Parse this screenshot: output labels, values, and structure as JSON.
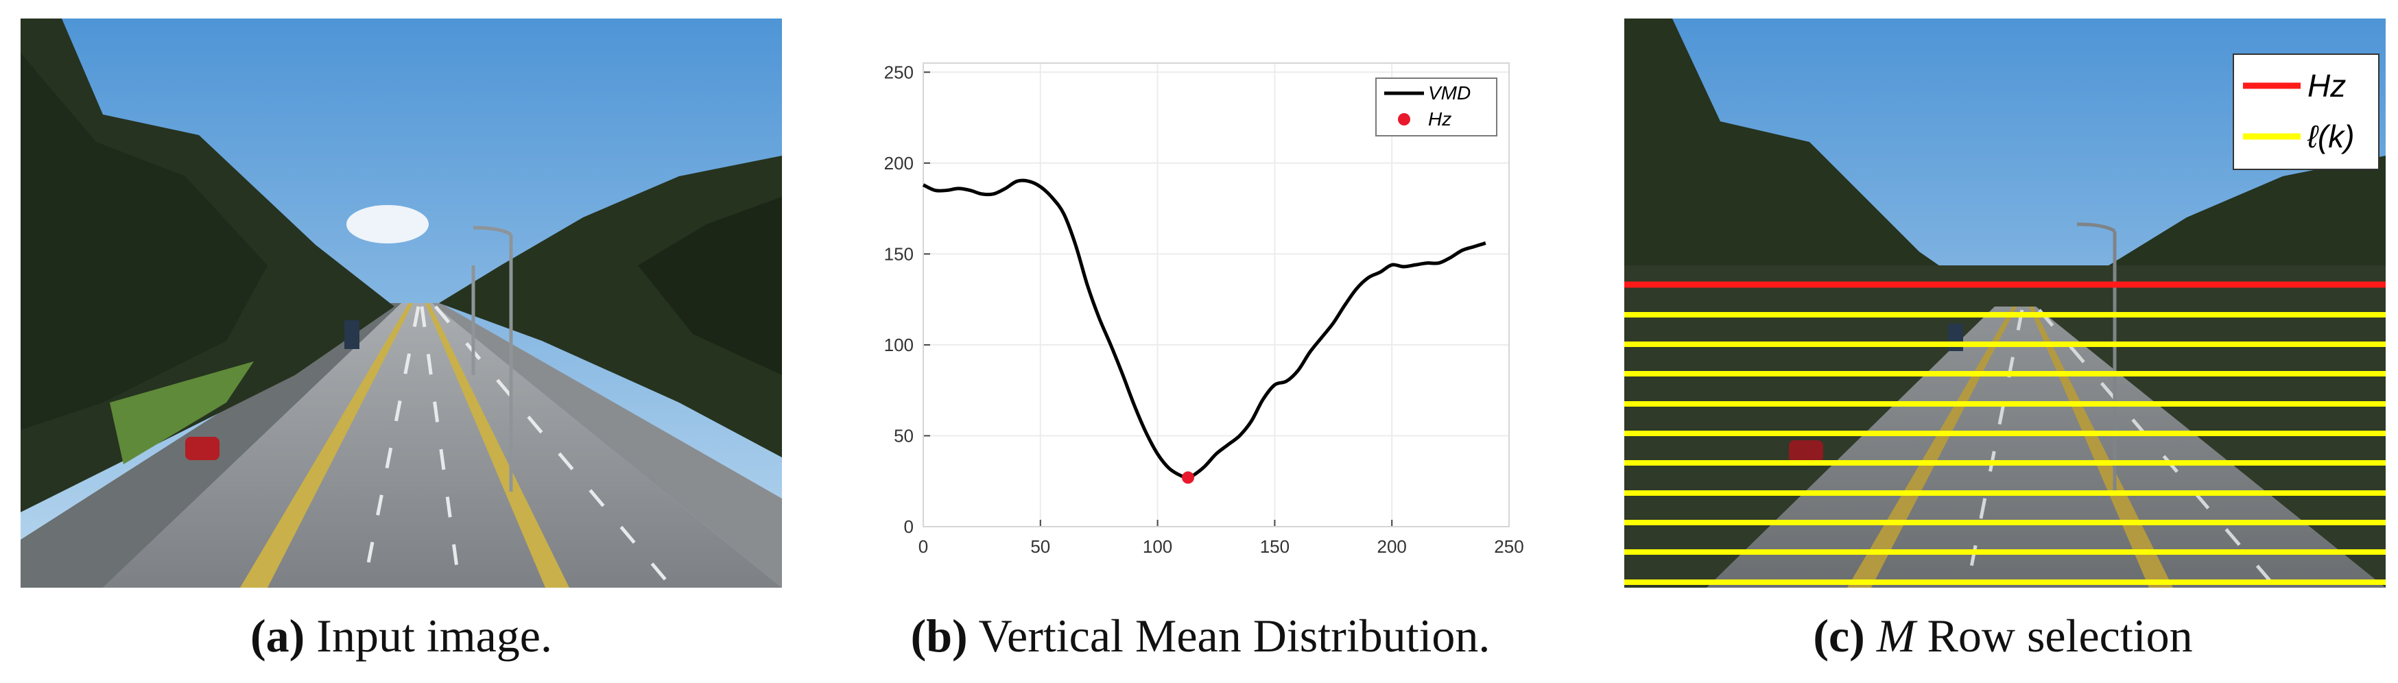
{
  "captions": {
    "a": {
      "label": "(a)",
      "text": "Input image."
    },
    "b": {
      "label": "(b)",
      "text": "Vertical Mean Distribution."
    },
    "c": {
      "label": "(c)",
      "var": "M",
      "text": "Row selection"
    }
  },
  "colors": {
    "curve": "#000000",
    "hz_point": "#e8192c",
    "hz_line": "#ff1a1a",
    "row_line": "#ffff00"
  },
  "chart_data": {
    "type": "line",
    "xlim": [
      0,
      250
    ],
    "ylim": [
      0,
      255
    ],
    "xticks": [
      0,
      50,
      100,
      150,
      200,
      250
    ],
    "yticks": [
      0,
      50,
      100,
      150,
      200,
      250
    ],
    "grid": true,
    "legend_position": "top-right",
    "legend": {
      "curve": "VMD",
      "point": "Hz"
    },
    "series": [
      {
        "name": "VMD",
        "x": [
          0,
          5,
          10,
          15,
          20,
          25,
          30,
          35,
          40,
          45,
          50,
          55,
          60,
          65,
          70,
          75,
          80,
          85,
          90,
          95,
          100,
          105,
          110,
          113,
          115,
          120,
          125,
          130,
          135,
          140,
          145,
          150,
          155,
          160,
          165,
          170,
          175,
          180,
          185,
          190,
          195,
          200,
          205,
          210,
          215,
          220,
          225,
          230,
          235,
          240
        ],
        "y": [
          188,
          185,
          185,
          186,
          185,
          183,
          183,
          186,
          190,
          190,
          187,
          181,
          172,
          155,
          133,
          115,
          100,
          84,
          67,
          52,
          40,
          32,
          28,
          27,
          28,
          33,
          40,
          45,
          50,
          58,
          70,
          78,
          80,
          86,
          96,
          104,
          112,
          122,
          131,
          137,
          140,
          144,
          143,
          144,
          145,
          145,
          148,
          152,
          154,
          156
        ]
      }
    ],
    "points": [
      {
        "name": "Hz",
        "x": 113,
        "y": 27
      }
    ]
  }
}
